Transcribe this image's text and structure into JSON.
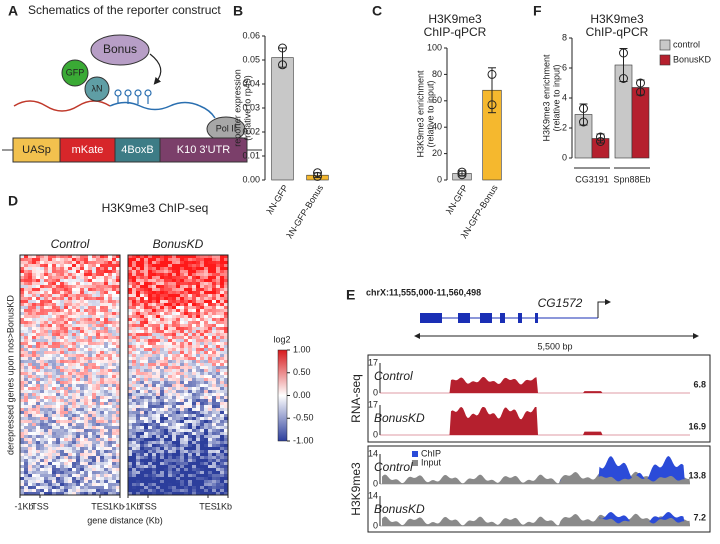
{
  "panel_labels": [
    "A",
    "B",
    "C",
    "D",
    "E",
    "F"
  ],
  "schematic": {
    "title": "Schematics of the reporter construct",
    "bonus": "Bonus",
    "gfp": "GFP",
    "lambda": "λN",
    "pol": "Pol II",
    "segments": [
      "UASp",
      "mKate",
      "4BoxB",
      "K10 3'UTR"
    ]
  },
  "chart_data": [
    {
      "type": "bar",
      "y_label": [
        "reporter expression",
        "(relative to rp49)"
      ],
      "categories": [
        "λN-GFP",
        "λN-GFP-Bonus"
      ],
      "values": [
        0.051,
        0.002
      ],
      "errors": [
        0.004,
        0.001
      ],
      "points": [
        [
          0.055,
          0.048
        ],
        [
          0.003,
          0.0015
        ]
      ],
      "colors": [
        "#c8c8c8",
        "#f5b82e"
      ],
      "ylim": [
        0,
        0.06
      ],
      "yticks": [
        {
          "value": 0,
          "label": "0.00"
        },
        {
          "value": 0.01,
          "label": "0.01"
        },
        {
          "value": 0.02,
          "label": "0.02"
        },
        {
          "value": 0.03,
          "label": "0.03"
        },
        {
          "value": 0.04,
          "label": "0.04"
        },
        {
          "value": 0.05,
          "label": "0.05"
        },
        {
          "value": 0.06,
          "label": "0.06"
        }
      ]
    },
    {
      "type": "bar",
      "title": [
        "H3K9me3",
        "ChIP-qPCR"
      ],
      "y_label": [
        "H3K9me3 enrichment",
        "(relative to input)"
      ],
      "categories": [
        "λN-GFP",
        "λN-GFP-Bonus"
      ],
      "values": [
        5,
        68
      ],
      "errors": [
        2,
        17
      ],
      "points": [
        [
          6,
          4
        ],
        [
          80,
          57
        ]
      ],
      "colors": [
        "#c8c8c8",
        "#f5b82e"
      ],
      "ylim": [
        0,
        100
      ],
      "yticks": [
        0,
        20,
        40,
        60,
        80,
        100
      ]
    },
    {
      "type": "grouped-bar",
      "title": [
        "H3K9me3",
        "ChIP-qPCR"
      ],
      "y_label": [
        "H3K9me3 enrichment",
        "(relative to input)"
      ],
      "categories": [
        "CG3191",
        "Spn88Eb"
      ],
      "legend": "upper right",
      "ylim": [
        0,
        8
      ],
      "yticks": [
        0,
        2,
        4,
        6,
        8
      ],
      "series": [
        {
          "name": "control",
          "color": "#c8c8c8",
          "values": [
            2.9,
            6.2
          ],
          "errors": [
            0.7,
            1.1
          ],
          "points": [
            [
              3.3,
              2.4
            ],
            [
              7,
              5.3
            ]
          ]
        },
        {
          "name": "BonusKD",
          "color": "#b5202e",
          "values": [
            1.3,
            4.7
          ],
          "errors": [
            0.3,
            0.5
          ],
          "points": [
            [
              1.4,
              1.1
            ],
            [
              5,
              4.4
            ]
          ]
        }
      ]
    }
  ],
  "heatmap": {
    "title": "H3K9me3 ChIP-seq",
    "columns": [
      "Control",
      "BonusKD"
    ],
    "y_label": "derepressed genes upon nos>BonusKD",
    "x_ticks": [
      "-1Kb",
      "TSS",
      "TES",
      "1Kb"
    ],
    "x_label": "gene distance (Kb)",
    "colorbar": {
      "title": "log2",
      "lim": [
        -1,
        1
      ],
      "ticks": [
        {
          "value": 1,
          "label": "1.00"
        },
        {
          "value": 0.5,
          "label": "0.50"
        },
        {
          "value": 0,
          "label": "0.00"
        },
        {
          "value": -0.5,
          "label": "-0.50"
        },
        {
          "value": -1,
          "label": "-1.00"
        }
      ]
    }
  },
  "tracks": {
    "locus": "chrX:11,555,000-11,560,498",
    "gene": "CG1572",
    "scale": "5,500 bp",
    "groups": [
      {
        "label": "RNA-seq",
        "tracks": [
          {
            "name": "Control",
            "ylim": [
              0,
              17
            ],
            "value": 6.8
          },
          {
            "name": "BonusKD",
            "ylim": [
              0,
              17
            ],
            "value": 16.9
          }
        ]
      },
      {
        "label": "H3K9me3",
        "legend": [
          "ChIP",
          "Input"
        ],
        "tracks": [
          {
            "name": "Control",
            "ylim": [
              0,
              14
            ],
            "value": 13.8
          },
          {
            "name": "BonusKD",
            "ylim": [
              0,
              14
            ],
            "value": 7.2
          }
        ]
      }
    ]
  }
}
